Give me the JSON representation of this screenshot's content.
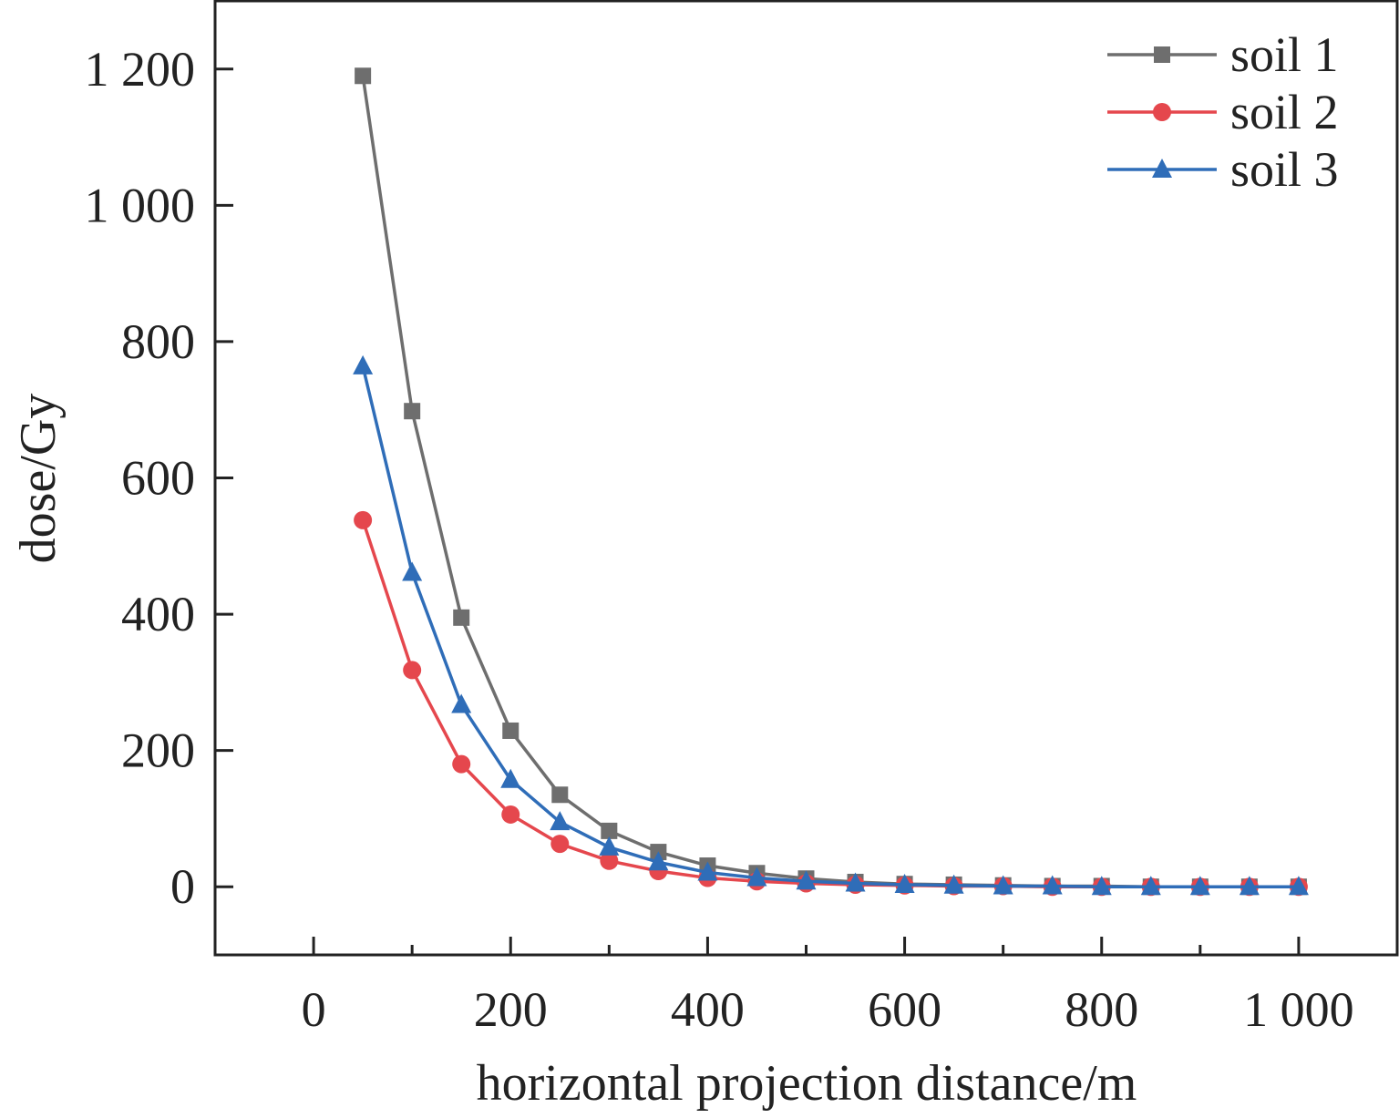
{
  "chart_data": {
    "type": "line",
    "title": "",
    "xlabel": "horizontal projection distance/m",
    "ylabel": "dose/Gy",
    "xlim": [
      -100,
      1100
    ],
    "ylim": [
      -100,
      1300
    ],
    "x_ticks": [
      0,
      200,
      400,
      600,
      800,
      1000
    ],
    "x_tick_labels": [
      "0",
      "200",
      "400",
      "600",
      "800",
      "1 000"
    ],
    "y_ticks": [
      0,
      200,
      400,
      600,
      800,
      1000,
      1200
    ],
    "y_tick_labels": [
      "0",
      "200",
      "400",
      "600",
      "800",
      "1 000",
      "1 200"
    ],
    "grid": false,
    "legend_position": "top-right",
    "x": [
      50,
      100,
      150,
      200,
      250,
      300,
      350,
      400,
      450,
      500,
      550,
      600,
      650,
      700,
      750,
      800,
      850,
      900,
      950,
      1000
    ],
    "series": [
      {
        "name": "soil 1",
        "color": "#6e6e6e",
        "marker": "square",
        "values": [
          1190,
          698,
          395,
          229,
          135,
          82,
          51,
          31,
          20,
          12,
          7,
          4,
          3,
          2,
          1,
          1,
          0,
          0,
          0,
          0
        ]
      },
      {
        "name": "soil 2",
        "color": "#e5474d",
        "marker": "circle",
        "values": [
          538,
          318,
          180,
          106,
          63,
          38,
          23,
          13,
          8,
          5,
          3,
          2,
          1,
          1,
          0,
          0,
          0,
          0,
          0,
          0
        ]
      },
      {
        "name": "soil 3",
        "color": "#2f6db8",
        "marker": "triangle",
        "values": [
          764,
          461,
          267,
          157,
          95,
          58,
          36,
          21,
          13,
          8,
          5,
          3,
          2,
          1,
          1,
          0,
          0,
          0,
          0,
          0
        ]
      }
    ]
  }
}
